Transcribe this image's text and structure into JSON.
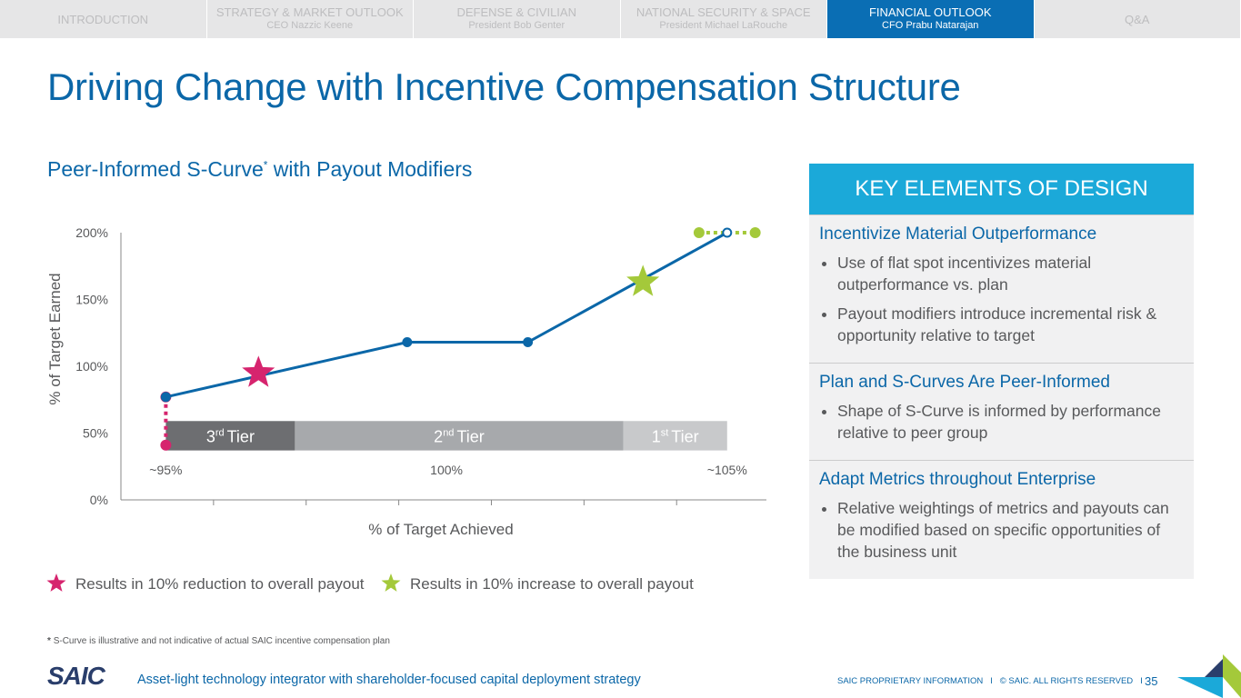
{
  "nav": [
    {
      "title": "INTRODUCTION"
    },
    {
      "title": "STRATEGY & MARKET OUTLOOK",
      "sub": "CEO Nazzic Keene"
    },
    {
      "title": "DEFENSE & CIVILIAN",
      "sub": "President Bob Genter"
    },
    {
      "title": "NATIONAL SECURITY & SPACE",
      "sub": "President Michael LaRouche"
    },
    {
      "title": "FINANCIAL OUTLOOK",
      "sub": "CFO Prabu Natarajan"
    },
    {
      "title": "Q&A"
    }
  ],
  "page_title": "Driving Change with Incentive Compensation Structure",
  "chart_data": {
    "type": "line",
    "title": "Peer-Informed S-Curve",
    "title_mark": "*",
    "title_rest": " with Payout Modifiers",
    "xlabel": "% of Target Achieved",
    "ylabel": "% of Target Earned",
    "x": [
      95,
      99.3,
      101.45,
      105
    ],
    "values": [
      77,
      118,
      118,
      200
    ],
    "color": "#0b67a8",
    "xlim": [
      94.2,
      105.7
    ],
    "xticks": [
      95.85,
      97.5,
      99.15,
      100.8,
      102.45,
      104.1
    ],
    "ylim": [
      0,
      200
    ],
    "yticks": [
      {
        "value": 0,
        "label": "0%"
      },
      {
        "value": 50,
        "label": "50%"
      },
      {
        "value": 100,
        "label": "100%"
      },
      {
        "value": 150,
        "label": "150%"
      },
      {
        "value": 200,
        "label": "200%"
      }
    ],
    "extensions": [
      {
        "x": [
          95,
          95
        ],
        "values": [
          77,
          41
        ],
        "color": "#d6246e"
      },
      {
        "x": [
          104.5,
          105.5
        ],
        "values": [
          200,
          200
        ],
        "color": "#a4c93a"
      }
    ],
    "markers": [
      {
        "x": 96.65,
        "y": 95,
        "color": "#d6246e",
        "label": "Results in 10% reduction to overall payout"
      },
      {
        "x": 103.5,
        "y": 163,
        "color": "#a4c93a",
        "label": "Results in 10% increase to overall payout"
      }
    ],
    "tier_band": [
      37,
      59
    ],
    "tiers": [
      {
        "ordinal": "3",
        "suffix": "rd",
        "word": "Tier",
        "x": [
          95,
          97.3
        ],
        "color": "#6d6e71"
      },
      {
        "ordinal": "2",
        "suffix": "nd",
        "word": "Tier",
        "x": [
          97.3,
          103.15
        ],
        "color": "#a7a9ac"
      },
      {
        "ordinal": "1",
        "suffix": "st",
        "word": "Tier",
        "x": [
          103.15,
          105
        ],
        "color": "#c8c9cb"
      }
    ],
    "annotations": [
      {
        "text": "~95%",
        "x": 95
      },
      {
        "text": "100%",
        "x": 100
      },
      {
        "text": "~105%",
        "x": 105
      }
    ]
  },
  "panel": {
    "header": "KEY ELEMENTS OF DESIGN",
    "sections": [
      {
        "heading": "Incentivize Material Outperformance",
        "bullets": [
          "Use of flat spot incentivizes material outperformance vs. plan",
          "Payout modifiers introduce incremental risk & opportunity relative to target"
        ]
      },
      {
        "heading": "Plan and S-Curves Are Peer-Informed",
        "bullets": [
          "Shape of S-Curve is informed by performance relative to peer group"
        ]
      },
      {
        "heading": "Adapt Metrics throughout Enterprise",
        "bullets": [
          "Relative weightings of metrics and payouts can be modified based on specific opportunities of the business unit"
        ]
      }
    ]
  },
  "footnote": {
    "mark": "*",
    "text": "S-Curve is illustrative and not indicative of actual SAIC incentive compensation plan"
  },
  "footer": {
    "logo": "SAIC",
    "tagline": "Asset-light technology integrator with shareholder-focused capital deployment strategy",
    "proprietary": "SAIC PROPRIETARY INFORMATION",
    "copyright": "© SAIC. ALL RIGHTS RESERVED",
    "page": "35"
  }
}
